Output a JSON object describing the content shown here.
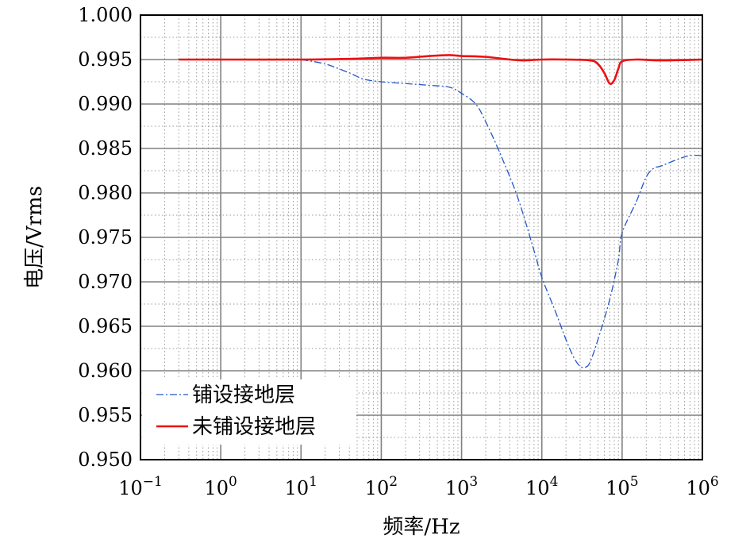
{
  "chart_data": {
    "type": "line",
    "xlabel": "频率/Hz",
    "ylabel": "电压/Vrms",
    "x_scale": "log",
    "xlim": [
      0.1,
      1000000
    ],
    "ylim": [
      0.95,
      1.0
    ],
    "x_ticks": [
      {
        "base": "10",
        "exp": "−1"
      },
      {
        "base": "10",
        "exp": "0"
      },
      {
        "base": "10",
        "exp": "1"
      },
      {
        "base": "10",
        "exp": "2"
      },
      {
        "base": "10",
        "exp": "3"
      },
      {
        "base": "10",
        "exp": "4"
      },
      {
        "base": "10",
        "exp": "5"
      },
      {
        "base": "10",
        "exp": "6"
      }
    ],
    "y_ticks": [
      "0.950",
      "0.955",
      "0.960",
      "0.965",
      "0.970",
      "0.975",
      "0.980",
      "0.985",
      "0.990",
      "0.995",
      "1.000"
    ],
    "grid": true,
    "minor_grid": true,
    "legend_position": "bottom-left",
    "series": [
      {
        "name": "铺设接地层",
        "color": "#2255cc",
        "line_style": "dash-dot",
        "x": [
          10,
          20,
          40,
          60,
          100,
          200,
          400,
          700,
          1000,
          1500,
          2000,
          3000,
          5000,
          8000,
          10000,
          15000,
          20000,
          25000,
          30000,
          35000,
          40000,
          50000,
          70000,
          90000,
          100000,
          150000,
          200000,
          250000,
          300000,
          500000,
          700000,
          1000000
        ],
        "y": [
          0.995,
          0.9945,
          0.9935,
          0.9928,
          0.9925,
          0.9923,
          0.9921,
          0.9919,
          0.9912,
          0.99,
          0.988,
          0.9845,
          0.9795,
          0.9735,
          0.9705,
          0.9665,
          0.9635,
          0.9615,
          0.9605,
          0.9604,
          0.961,
          0.9635,
          0.968,
          0.9725,
          0.9755,
          0.979,
          0.9818,
          0.9828,
          0.983,
          0.9838,
          0.9842,
          0.9842
        ]
      },
      {
        "name": "未铺设接地层",
        "color": "#ee1111",
        "line_style": "solid",
        "x": [
          0.3,
          1,
          10,
          50,
          100,
          200,
          400,
          700,
          1000,
          2000,
          4000,
          6000,
          10000,
          20000,
          40000,
          50000,
          60000,
          70000,
          80000,
          90000,
          100000,
          150000,
          300000,
          1000000
        ],
        "y": [
          0.995,
          0.995,
          0.995,
          0.9951,
          0.9952,
          0.9952,
          0.9954,
          0.9955,
          0.9954,
          0.9953,
          0.995,
          0.9949,
          0.995,
          0.995,
          0.9949,
          0.9945,
          0.9935,
          0.9923,
          0.9927,
          0.994,
          0.9948,
          0.995,
          0.9949,
          0.995
        ]
      }
    ]
  }
}
